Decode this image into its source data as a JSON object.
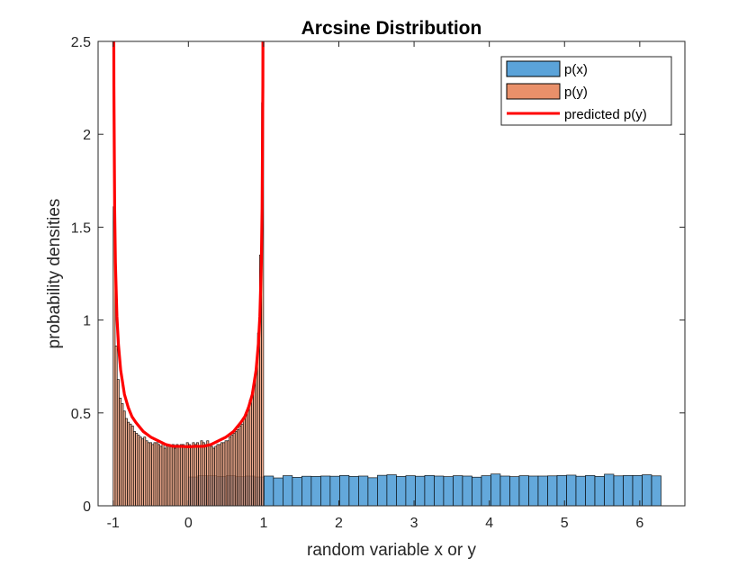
{
  "chart_data": {
    "type": "bar",
    "title": "Arcsine Distribution",
    "xlabel": "random variable x or y",
    "ylabel": "probability densities",
    "xlim": [
      -1.2,
      6.6
    ],
    "ylim": [
      0,
      2.5
    ],
    "xticks": [
      -1,
      0,
      1,
      2,
      3,
      4,
      5,
      6
    ],
    "xtick_labels": [
      "-1",
      "0",
      "1",
      "2",
      "3",
      "4",
      "5",
      "6"
    ],
    "yticks": [
      0,
      0.5,
      1,
      1.5,
      2,
      2.5
    ],
    "ytick_labels": [
      "0",
      "0.5",
      "1",
      "1.5",
      "2",
      "2.5"
    ],
    "grid": false,
    "legend_position": "top-right",
    "series": [
      {
        "name": "p(x)",
        "kind": "histogram",
        "color": "#5BA3D9",
        "edges": [
          0,
          6.2832
        ],
        "values": [
          0.155,
          0.163,
          0.162,
          0.158,
          0.163,
          0.157,
          0.16,
          0.155,
          0.16,
          0.15,
          0.162,
          0.153,
          0.159,
          0.158,
          0.16,
          0.159,
          0.163,
          0.158,
          0.16,
          0.151,
          0.164,
          0.167,
          0.158,
          0.162,
          0.159,
          0.163,
          0.16,
          0.157,
          0.162,
          0.16,
          0.154,
          0.162,
          0.171,
          0.16,
          0.157,
          0.162,
          0.16,
          0.16,
          0.161,
          0.163,
          0.165,
          0.159,
          0.163,
          0.158,
          0.17,
          0.161,
          0.163,
          0.163,
          0.167,
          0.161
        ]
      },
      {
        "name": "p(y)",
        "kind": "histogram",
        "color": "#E9906A",
        "edges": [
          -1,
          1
        ],
        "values": [
          1.61,
          0.86,
          0.68,
          0.58,
          0.55,
          0.51,
          0.47,
          0.45,
          0.44,
          0.43,
          0.4,
          0.39,
          0.38,
          0.37,
          0.36,
          0.37,
          0.35,
          0.34,
          0.34,
          0.33,
          0.34,
          0.34,
          0.33,
          0.32,
          0.34,
          0.31,
          0.33,
          0.32,
          0.32,
          0.33,
          0.31,
          0.33,
          0.32,
          0.33,
          0.33,
          0.32,
          0.34,
          0.33,
          0.32,
          0.34,
          0.33,
          0.34,
          0.32,
          0.35,
          0.34,
          0.33,
          0.35,
          0.33,
          0.32,
          0.31,
          0.32,
          0.33,
          0.33,
          0.34,
          0.34,
          0.35,
          0.35,
          0.37,
          0.38,
          0.39,
          0.4,
          0.41,
          0.43,
          0.44,
          0.47,
          0.5,
          0.53,
          0.57,
          0.61,
          0.67,
          0.76,
          0.93,
          1.35,
          2.17
        ]
      },
      {
        "name": "predicted p(y)",
        "kind": "line",
        "color": "#FF0000",
        "x": [
          -0.995,
          -0.99,
          -0.98,
          -0.97,
          -0.95,
          -0.93,
          -0.9,
          -0.85,
          -0.8,
          -0.75,
          -0.7,
          -0.6,
          -0.5,
          -0.4,
          -0.3,
          -0.2,
          -0.1,
          0,
          0.1,
          0.2,
          0.3,
          0.4,
          0.5,
          0.6,
          0.7,
          0.75,
          0.8,
          0.85,
          0.9,
          0.93,
          0.95,
          0.97,
          0.98,
          0.99,
          0.995
        ],
        "y": [
          3.19,
          2.26,
          1.6,
          1.31,
          1.02,
          0.87,
          0.73,
          0.6,
          0.53,
          0.48,
          0.45,
          0.4,
          0.37,
          0.35,
          0.33,
          0.32,
          0.32,
          0.318,
          0.32,
          0.32,
          0.33,
          0.35,
          0.37,
          0.4,
          0.45,
          0.48,
          0.53,
          0.6,
          0.73,
          0.87,
          1.02,
          1.31,
          1.6,
          2.26,
          3.19
        ]
      }
    ]
  }
}
